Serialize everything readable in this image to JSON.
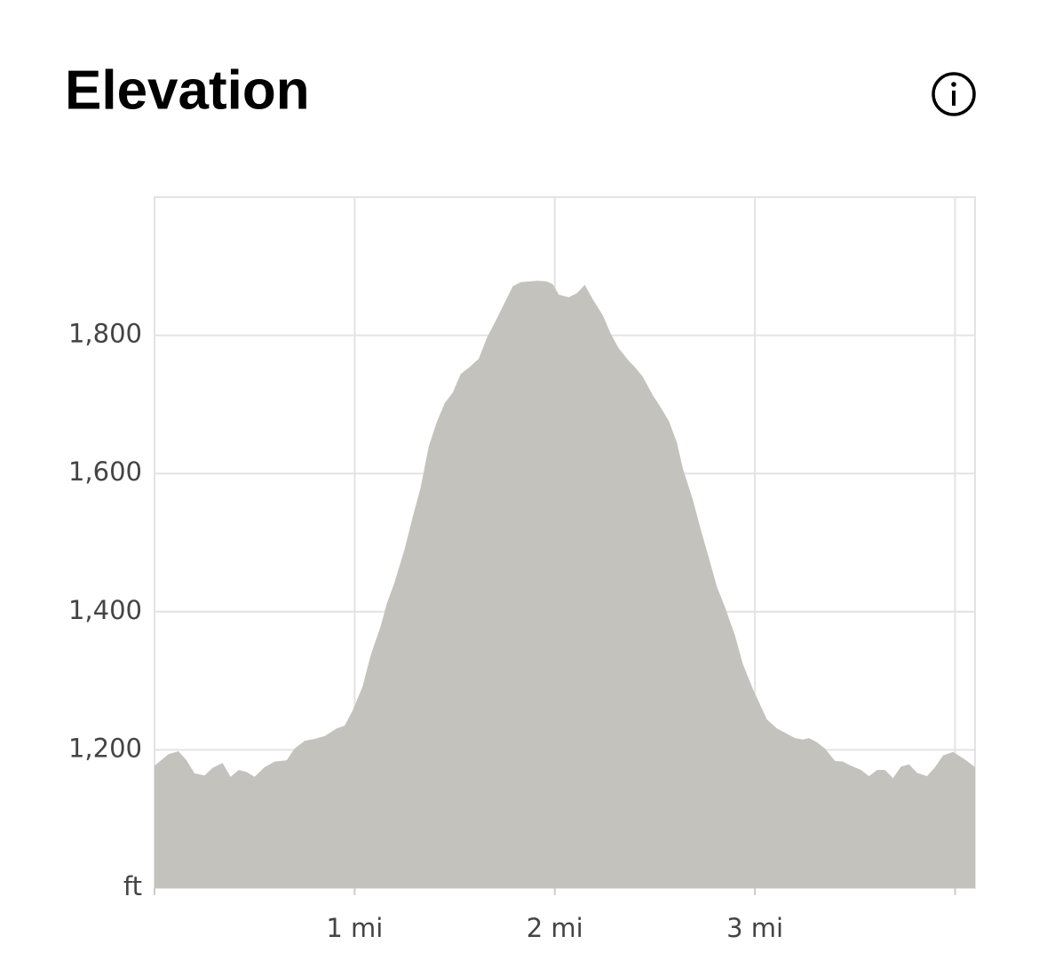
{
  "chart_data": {
    "type": "area",
    "title": "Elevation",
    "color": "#c3c2bd",
    "grid": true,
    "x": [
      0,
      0.07,
      0.12,
      0.16,
      0.2,
      0.25,
      0.29,
      0.34,
      0.38,
      0.42,
      0.46,
      0.5,
      0.55,
      0.6,
      0.66,
      0.7,
      0.75,
      0.8,
      0.85,
      0.91,
      0.95,
      0.99,
      1.04,
      1.08,
      1.13,
      1.16,
      1.2,
      1.25,
      1.29,
      1.33,
      1.37,
      1.41,
      1.45,
      1.49,
      1.53,
      1.57,
      1.62,
      1.66,
      1.71,
      1.79,
      1.83,
      1.91,
      1.96,
      1.99,
      2.02,
      2.07,
      2.11,
      2.15,
      2.19,
      2.24,
      2.28,
      2.32,
      2.37,
      2.4,
      2.44,
      2.49,
      2.52,
      2.57,
      2.61,
      2.64,
      2.69,
      2.73,
      2.77,
      2.81,
      2.85,
      2.9,
      2.94,
      2.99,
      3.06,
      3.11,
      3.15,
      3.2,
      3.24,
      3.27,
      3.31,
      3.35,
      3.4,
      3.44,
      3.48,
      3.53,
      3.57,
      3.61,
      3.65,
      3.69,
      3.73,
      3.77,
      3.81,
      3.86,
      3.9,
      3.94,
      3.99,
      4.05,
      4.1
    ],
    "values": [
      1177,
      1194,
      1198,
      1185,
      1166,
      1163,
      1174,
      1181,
      1161,
      1171,
      1168,
      1161,
      1175,
      1183,
      1185,
      1202,
      1213,
      1216,
      1220,
      1231,
      1235,
      1257,
      1292,
      1337,
      1379,
      1411,
      1443,
      1491,
      1537,
      1580,
      1639,
      1674,
      1702,
      1717,
      1744,
      1753,
      1766,
      1796,
      1824,
      1871,
      1877,
      1879,
      1878,
      1874,
      1859,
      1855,
      1861,
      1873,
      1852,
      1829,
      1802,
      1781,
      1763,
      1754,
      1740,
      1713,
      1700,
      1676,
      1645,
      1607,
      1562,
      1518,
      1478,
      1436,
      1407,
      1366,
      1324,
      1288,
      1244,
      1231,
      1225,
      1217,
      1215,
      1217,
      1211,
      1202,
      1184,
      1183,
      1177,
      1171,
      1162,
      1171,
      1171,
      1159,
      1176,
      1179,
      1167,
      1162,
      1175,
      1192,
      1197,
      1186,
      1175
    ],
    "xlim": [
      0,
      4.1
    ],
    "ylim": [
      1000,
      2000
    ],
    "xticks": [
      {
        "value": 0,
        "label": null
      },
      {
        "value": 1,
        "label": "1 mi"
      },
      {
        "value": 2,
        "label": "2 mi"
      },
      {
        "value": 3,
        "label": "3 mi"
      },
      {
        "value": 4,
        "label": null
      }
    ],
    "yticks": [
      {
        "value": 1000,
        "label": "ft"
      },
      {
        "value": 1200,
        "label": "1,200"
      },
      {
        "value": 1400,
        "label": "1,400"
      },
      {
        "value": 1600,
        "label": "1,600"
      },
      {
        "value": 1800,
        "label": "1,800"
      }
    ]
  }
}
